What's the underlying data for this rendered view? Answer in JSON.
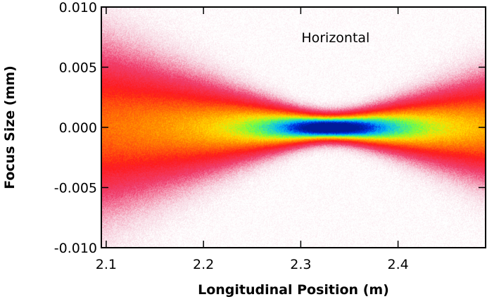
{
  "chart_data": {
    "type": "heatmap",
    "title": "",
    "xlabel": "Longitudinal Position (m)",
    "ylabel": "Focus Size (mm)",
    "xlim": [
      2.095,
      2.49
    ],
    "ylim": [
      -0.01,
      0.01
    ],
    "xticks": [
      2.1,
      2.2,
      2.3,
      2.4
    ],
    "xtick_labels": [
      "2.1",
      "2.2",
      "2.3",
      "2.4"
    ],
    "yticks": [
      0.01,
      0.005,
      0.0,
      -0.005,
      -0.01
    ],
    "ytick_labels": [
      "0.010",
      "0.005",
      "0.000",
      "-0.005",
      "-0.010"
    ],
    "annotations": [
      {
        "text": "Horizontal",
        "x": 2.33,
        "y": 0.0072
      }
    ],
    "grid": false,
    "density_model": {
      "description_values": "beam focus envelope; waist near x=2.33 m",
      "waist_position": 2.33,
      "waist_sigma_mm": 0.0009,
      "sigma_at_left_edge_mm": 0.0052,
      "sigma_at_right_edge_mm": 0.0033
    },
    "colormap": [
      "#ffffff",
      "#f7d4e0",
      "#f04070",
      "#ff1a1a",
      "#ff8a00",
      "#ffe000",
      "#7cff3a",
      "#2de0b0",
      "#00b0ff",
      "#0030e0",
      "#001a9a"
    ]
  }
}
